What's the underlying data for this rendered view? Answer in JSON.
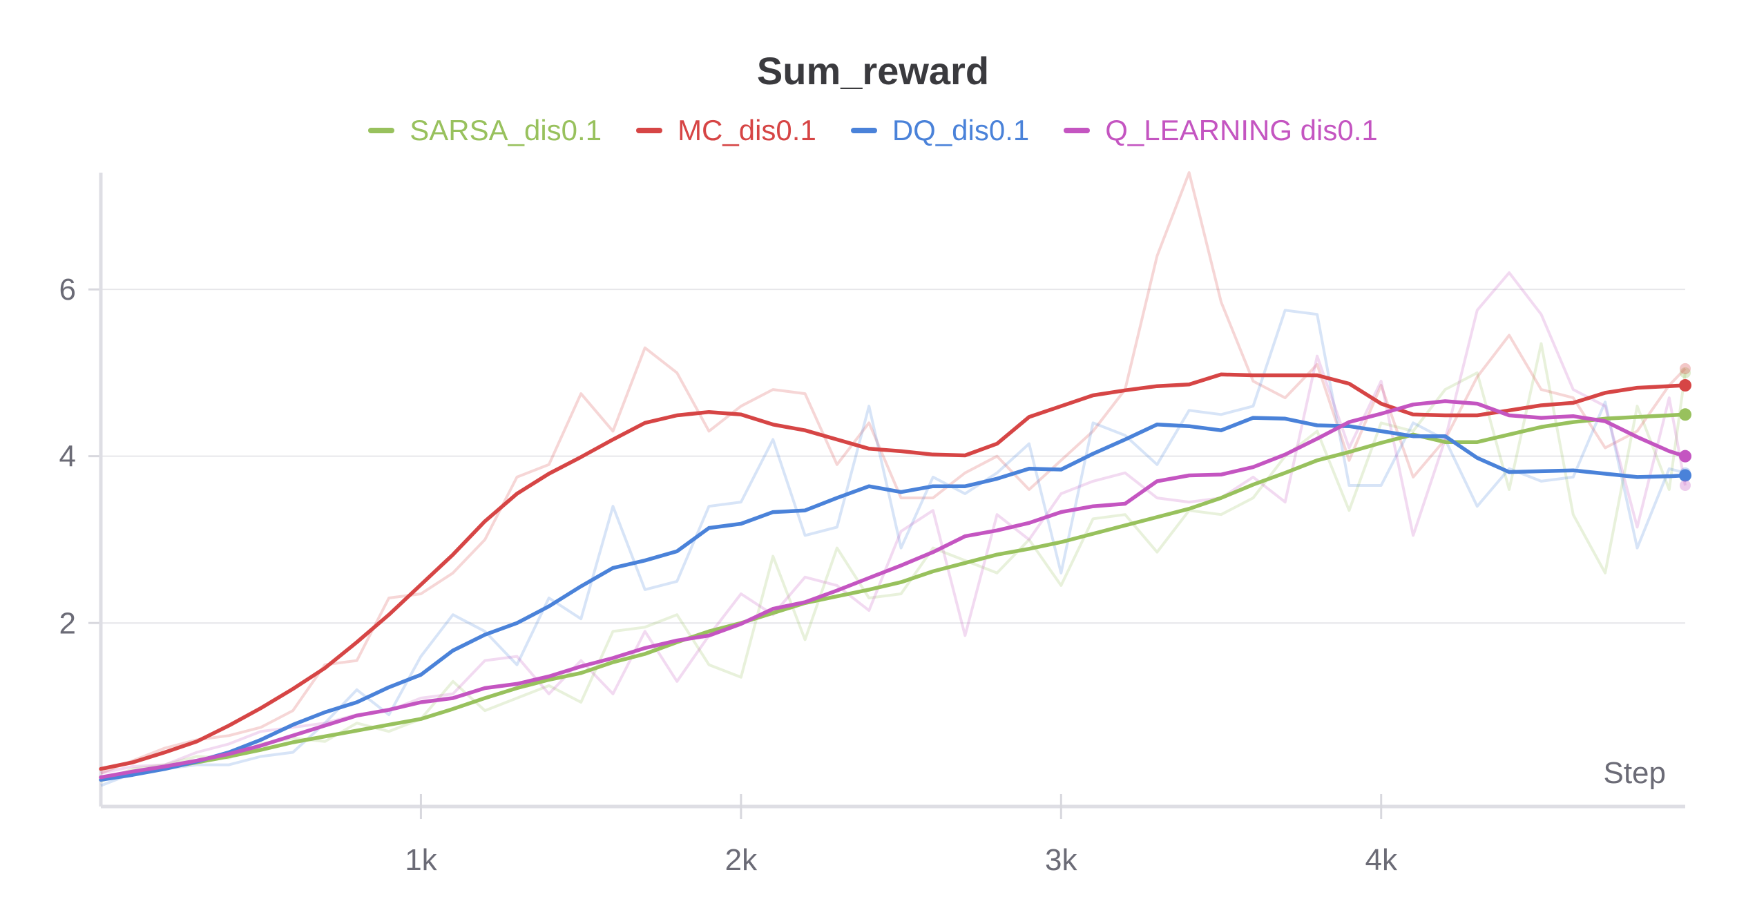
{
  "chart_data": {
    "type": "line",
    "title": "Sum_reward",
    "xlabel": "Step",
    "ylabel": "",
    "xlim": [
      0,
      4950
    ],
    "ylim": [
      -0.2,
      7.4
    ],
    "x_ticks": [
      {
        "value": 1000,
        "label": "1k"
      },
      {
        "value": 2000,
        "label": "2k"
      },
      {
        "value": 3000,
        "label": "3k"
      },
      {
        "value": 4000,
        "label": "4k"
      }
    ],
    "y_ticks": [
      {
        "value": 2,
        "label": "2"
      },
      {
        "value": 4,
        "label": "4"
      },
      {
        "value": 6,
        "label": "6"
      }
    ],
    "grid": true,
    "legend_position": "top-center",
    "x": [
      0,
      100,
      200,
      300,
      400,
      500,
      600,
      700,
      800,
      900,
      1000,
      1100,
      1200,
      1300,
      1400,
      1500,
      1600,
      1700,
      1800,
      1900,
      2000,
      2100,
      2200,
      2300,
      2400,
      2500,
      2600,
      2700,
      2800,
      2900,
      3000,
      3100,
      3200,
      3300,
      3400,
      3500,
      3600,
      3700,
      3800,
      3900,
      4000,
      4100,
      4200,
      4300,
      4400,
      4500,
      4600,
      4700,
      4800,
      4900,
      4950
    ],
    "series": [
      {
        "name": "SARSA_dis0.1",
        "color": "#98c15d",
        "smoothed": [
          0.15,
          0.2,
          0.26,
          0.33,
          0.4,
          0.48,
          0.57,
          0.64,
          0.71,
          0.78,
          0.85,
          0.97,
          1.1,
          1.22,
          1.32,
          1.4,
          1.53,
          1.63,
          1.77,
          1.9,
          2.0,
          2.12,
          2.24,
          2.32,
          2.4,
          2.49,
          2.62,
          2.72,
          2.82,
          2.89,
          2.97,
          3.07,
          3.17,
          3.27,
          3.37,
          3.5,
          3.66,
          3.8,
          3.95,
          4.05,
          4.16,
          4.26,
          4.17,
          4.17,
          4.26,
          4.35,
          4.41,
          4.45,
          4.47,
          4.49,
          4.5
        ],
        "raw": [
          0.1,
          0.25,
          0.3,
          0.4,
          0.38,
          0.55,
          0.62,
          0.58,
          0.8,
          0.7,
          0.85,
          1.3,
          0.95,
          1.1,
          1.25,
          1.05,
          1.9,
          1.95,
          2.1,
          1.5,
          1.35,
          2.8,
          1.8,
          2.9,
          2.3,
          2.35,
          2.9,
          2.75,
          2.6,
          3.0,
          2.45,
          3.25,
          3.3,
          2.85,
          3.35,
          3.3,
          3.5,
          4.0,
          4.3,
          3.35,
          4.4,
          4.3,
          4.8,
          5.0,
          3.6,
          5.35,
          3.3,
          2.6,
          4.6,
          3.6,
          5.0
        ]
      },
      {
        "name": "MC_dis0.1",
        "color": "#d64545",
        "smoothed": [
          0.25,
          0.33,
          0.45,
          0.58,
          0.77,
          0.98,
          1.21,
          1.46,
          1.77,
          2.1,
          2.46,
          2.82,
          3.22,
          3.55,
          3.79,
          3.99,
          4.2,
          4.4,
          4.49,
          4.53,
          4.5,
          4.38,
          4.31,
          4.2,
          4.09,
          4.06,
          4.02,
          4.01,
          4.15,
          4.47,
          4.6,
          4.73,
          4.79,
          4.84,
          4.86,
          4.98,
          4.97,
          4.97,
          4.97,
          4.87,
          4.63,
          4.5,
          4.49,
          4.49,
          4.55,
          4.61,
          4.64,
          4.76,
          4.82,
          4.84,
          4.85
        ],
        "raw": [
          0.2,
          0.35,
          0.5,
          0.6,
          0.65,
          0.75,
          0.95,
          1.5,
          1.55,
          2.3,
          2.35,
          2.6,
          3.0,
          3.75,
          3.9,
          4.75,
          4.3,
          5.3,
          5.0,
          4.3,
          4.6,
          4.8,
          4.75,
          3.9,
          4.4,
          3.5,
          3.5,
          3.8,
          4.0,
          3.6,
          3.95,
          4.3,
          4.8,
          6.4,
          7.4,
          5.85,
          4.9,
          4.7,
          5.1,
          3.95,
          4.85,
          3.75,
          4.2,
          4.95,
          5.45,
          4.8,
          4.7,
          4.1,
          4.3,
          4.85,
          5.05
        ]
      },
      {
        "name": "DQ_dis0.1",
        "color": "#4a82d9",
        "smoothed": [
          0.12,
          0.18,
          0.25,
          0.34,
          0.45,
          0.6,
          0.78,
          0.93,
          1.05,
          1.23,
          1.38,
          1.67,
          1.86,
          2.0,
          2.2,
          2.44,
          2.66,
          2.75,
          2.86,
          3.14,
          3.19,
          3.33,
          3.35,
          3.5,
          3.64,
          3.57,
          3.64,
          3.64,
          3.73,
          3.85,
          3.84,
          4.03,
          4.2,
          4.38,
          4.36,
          4.31,
          4.46,
          4.45,
          4.37,
          4.36,
          4.3,
          4.24,
          4.24,
          3.98,
          3.81,
          3.82,
          3.83,
          3.79,
          3.75,
          3.76,
          3.77
        ],
        "raw": [
          0.05,
          0.2,
          0.25,
          0.3,
          0.3,
          0.4,
          0.45,
          0.8,
          1.2,
          0.9,
          1.6,
          2.1,
          1.9,
          1.5,
          2.3,
          2.05,
          3.4,
          2.4,
          2.5,
          3.4,
          3.45,
          4.2,
          3.05,
          3.15,
          4.6,
          2.9,
          3.75,
          3.55,
          3.8,
          4.15,
          2.6,
          4.4,
          4.25,
          3.9,
          4.55,
          4.5,
          4.6,
          5.75,
          5.7,
          3.65,
          3.65,
          4.4,
          4.2,
          3.4,
          3.85,
          3.7,
          3.75,
          4.65,
          2.9,
          3.85,
          3.8
        ]
      },
      {
        "name": "Q_LEARNING dis0.1",
        "color": "#c455c1",
        "smoothed": [
          0.15,
          0.22,
          0.28,
          0.35,
          0.43,
          0.53,
          0.65,
          0.77,
          0.89,
          0.96,
          1.05,
          1.1,
          1.22,
          1.27,
          1.36,
          1.48,
          1.58,
          1.7,
          1.79,
          1.85,
          1.99,
          2.17,
          2.25,
          2.39,
          2.54,
          2.69,
          2.85,
          3.04,
          3.11,
          3.2,
          3.33,
          3.4,
          3.43,
          3.7,
          3.77,
          3.78,
          3.87,
          4.02,
          4.21,
          4.41,
          4.51,
          4.62,
          4.66,
          4.63,
          4.49,
          4.46,
          4.48,
          4.42,
          4.23,
          4.06,
          4.0
        ],
        "raw": [
          0.2,
          0.28,
          0.3,
          0.45,
          0.55,
          0.7,
          0.75,
          0.8,
          0.9,
          0.95,
          1.1,
          1.15,
          1.55,
          1.6,
          1.15,
          1.55,
          1.15,
          1.9,
          1.3,
          1.85,
          2.35,
          2.1,
          2.55,
          2.45,
          2.15,
          3.1,
          3.35,
          1.85,
          3.3,
          3.0,
          3.55,
          3.7,
          3.8,
          3.5,
          3.45,
          3.5,
          3.75,
          3.45,
          5.2,
          4.1,
          4.9,
          3.05,
          4.2,
          5.75,
          6.2,
          5.7,
          4.8,
          4.6,
          3.15,
          4.7,
          3.65
        ]
      }
    ]
  }
}
